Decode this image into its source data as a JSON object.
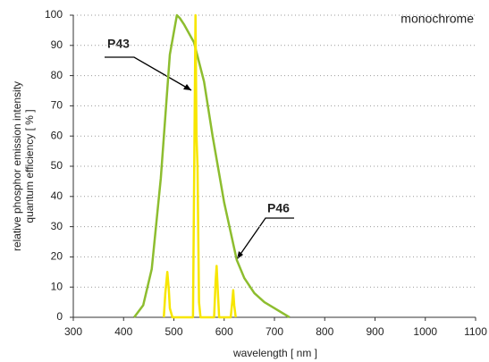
{
  "chart_data": {
    "type": "line",
    "x_label": "wavelength [ nm ]",
    "y_label": [
      "relative phosphor emission intensity",
      "quantum efficiency [ % ]"
    ],
    "annotations": [
      {
        "text": "monochrome"
      },
      {
        "text": "P43"
      },
      {
        "text": "P46"
      }
    ],
    "xlim": [
      300,
      1100
    ],
    "xticks": [
      300,
      400,
      500,
      600,
      700,
      800,
      900,
      1000,
      1100
    ],
    "ylim": [
      0,
      100
    ],
    "yticks": [
      0,
      10,
      20,
      30,
      40,
      50,
      60,
      70,
      80,
      90,
      100
    ],
    "grid": true,
    "series": [
      {
        "name": "P46",
        "color": "#8dbd2f",
        "x": [
          421,
          439,
          456,
          474,
          492,
          506,
          512,
          520,
          540,
          560,
          577,
          600,
          625,
          640,
          660,
          680,
          700,
          730
        ],
        "values": [
          0,
          4,
          16,
          46,
          87,
          100,
          99,
          97,
          91,
          78,
          60,
          38,
          19,
          13,
          8,
          5,
          3,
          0
        ]
      },
      {
        "name": "P43",
        "color": "#f7e600",
        "x": [
          480,
          483,
          487,
          490,
          492,
          497,
          538,
          541,
          543,
          545,
          547,
          550,
          553,
          580,
          583,
          585,
          587,
          590,
          613,
          616,
          618,
          620,
          623
        ],
        "values": [
          0,
          8,
          15,
          9,
          3,
          0,
          0,
          60,
          100,
          60,
          50,
          5,
          0,
          0,
          12,
          17,
          10,
          0,
          0,
          5,
          9,
          4,
          0
        ]
      }
    ]
  }
}
